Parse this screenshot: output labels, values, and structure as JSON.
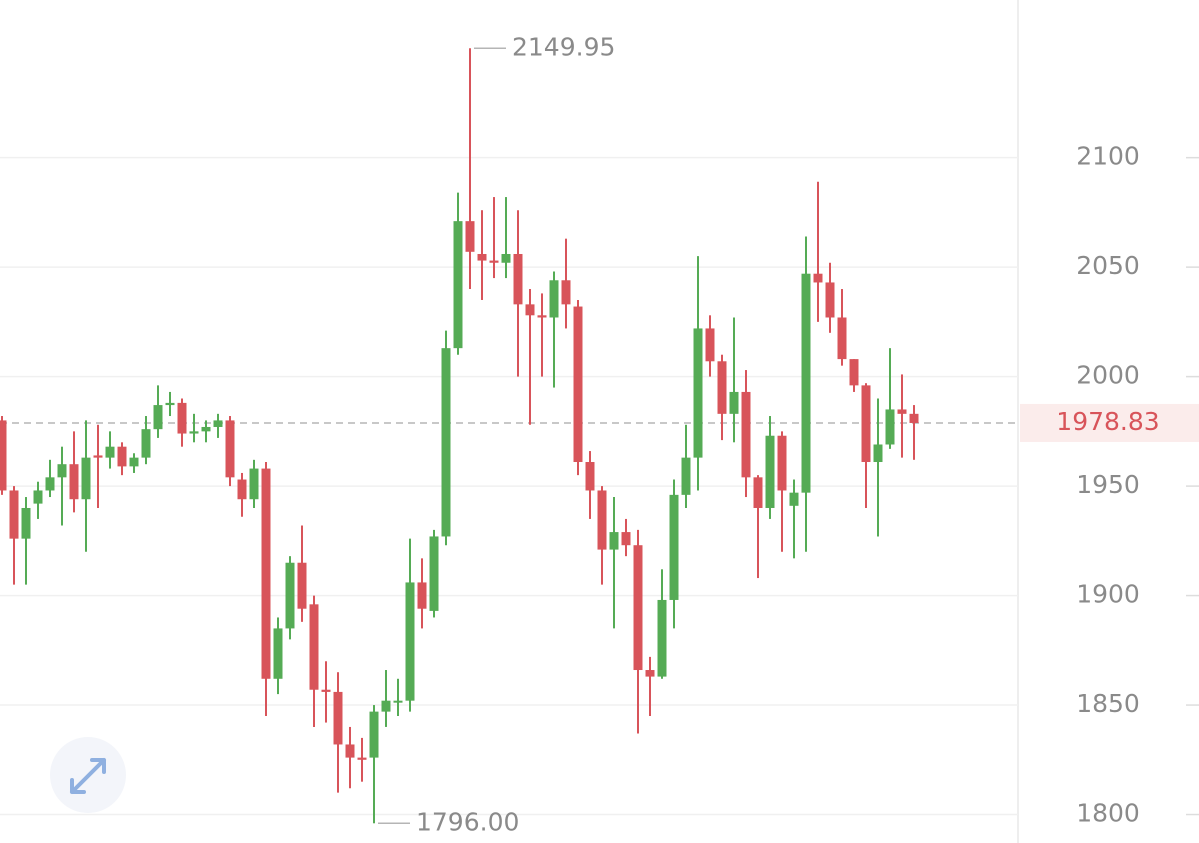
{
  "chart_data": {
    "type": "candlestick",
    "open": [
      1980,
      1948,
      1926,
      1942,
      1948,
      1954,
      1960,
      1944,
      1964,
      1963,
      1968,
      1959,
      1963,
      1976,
      1987,
      1988,
      1974,
      1975,
      1977,
      1980,
      1953,
      1944,
      1958,
      1862,
      1885,
      1915,
      1896,
      1857,
      1856,
      1832,
      1826,
      1826,
      1847,
      1852,
      1852,
      1906,
      1893,
      1927,
      2013,
      2071,
      2056,
      2053,
      2052,
      2056,
      2033,
      2028,
      2027,
      2044,
      2032,
      1961,
      1948,
      1921,
      1929,
      1923,
      1866,
      1863,
      1898,
      1946,
      1963,
      2022,
      2007,
      1983,
      1993,
      1954,
      1940,
      1973,
      1941,
      1947,
      2047,
      2043,
      2027,
      2008,
      1996,
      1961,
      1969,
      1985,
      1983
    ],
    "high": [
      1982,
      1950,
      1945,
      1952,
      1962,
      1968,
      1975,
      1980,
      1978,
      1975,
      1970,
      1965,
      1982,
      1996,
      1993,
      1990,
      1983,
      1980,
      1983,
      1982,
      1956,
      1962,
      1961,
      1890,
      1918,
      1932,
      1900,
      1870,
      1865,
      1840,
      1835,
      1850,
      1866,
      1862,
      1926,
      1917,
      1930,
      2021,
      2084,
      2149.95,
      2076,
      2082,
      2082,
      2076,
      2040,
      2038,
      2048,
      2063,
      2035,
      1966,
      1950,
      1945,
      1935,
      1930,
      1872,
      1912,
      1953,
      1978,
      2055,
      2028,
      2010,
      2027,
      2003,
      1955,
      1982,
      1975,
      1953,
      2064,
      2089,
      2052,
      2040,
      2008,
      1997,
      1990,
      2013,
      2001,
      1987
    ],
    "low": [
      1946,
      1905,
      1905,
      1935,
      1945,
      1932,
      1938,
      1920,
      1940,
      1958,
      1955,
      1956,
      1960,
      1972,
      1982,
      1968,
      1970,
      1970,
      1972,
      1950,
      1936,
      1940,
      1845,
      1855,
      1880,
      1888,
      1840,
      1842,
      1810,
      1812,
      1815,
      1796,
      1840,
      1845,
      1847,
      1885,
      1890,
      1923,
      2010,
      2040,
      2035,
      2045,
      2045,
      2000,
      1978,
      2000,
      1995,
      2022,
      1955,
      1935,
      1905,
      1885,
      1918,
      1837,
      1845,
      1862,
      1885,
      1940,
      1948,
      2000,
      1971,
      1970,
      1945,
      1908,
      1935,
      1920,
      1917,
      1920,
      2025,
      2020,
      2005,
      1993,
      1940,
      1927,
      1967,
      1963,
      1962
    ],
    "close": [
      1948,
      1926,
      1940,
      1948,
      1954,
      1960,
      1944,
      1963,
      1963,
      1968,
      1959,
      1963,
      1976,
      1987,
      1988,
      1974,
      1975,
      1977,
      1980,
      1954,
      1944,
      1958,
      1862,
      1885,
      1915,
      1894,
      1857,
      1856,
      1832,
      1826,
      1825,
      1847,
      1852,
      1852,
      1906,
      1894,
      1927,
      2013,
      2071,
      2057,
      2053,
      2052,
      2056,
      2033,
      2028,
      2027,
      2044,
      2033,
      1961,
      1948,
      1921,
      1929,
      1923,
      1866,
      1863,
      1898,
      1946,
      1963,
      2022,
      2007,
      1983,
      1993,
      1954,
      1940,
      1973,
      1948,
      1947,
      2047,
      2043,
      2027,
      2008,
      1996,
      1961,
      1969,
      1985,
      1983,
      1978.83
    ],
    "up_color": "#55ab55",
    "down_color": "#d8545a",
    "ylim": [
      1787,
      2172
    ],
    "yticks": [
      1800,
      1850,
      1900,
      1950,
      2000,
      2050,
      2100
    ],
    "grid": true,
    "high_marker": {
      "value": 2149.95,
      "label": "2149.95"
    },
    "low_marker": {
      "value": 1796,
      "label": "1796.00"
    },
    "last_price": {
      "value": 1978.83,
      "label": "1978.83"
    }
  }
}
